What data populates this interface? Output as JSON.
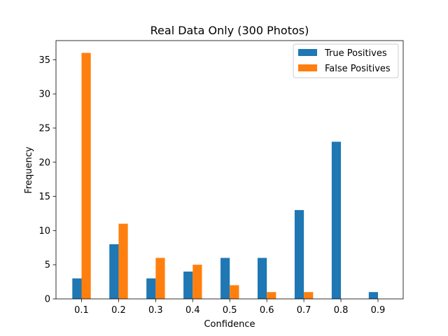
{
  "chart_data": {
    "type": "bar",
    "title": "Real Data Only (300 Photos)",
    "xlabel": "Confidence",
    "ylabel": "Frequency",
    "categories": [
      "0.1",
      "0.2",
      "0.3",
      "0.4",
      "0.5",
      "0.6",
      "0.7",
      "0.8",
      "0.9"
    ],
    "ylim": [
      0,
      37.8
    ],
    "yticks": [
      0,
      5,
      10,
      15,
      20,
      25,
      30,
      35
    ],
    "grid": false,
    "legend_position": "top-right",
    "series": [
      {
        "name": "True Positives",
        "color": "#1f77b4",
        "values": [
          3,
          8,
          3,
          4,
          6,
          6,
          13,
          23,
          1
        ]
      },
      {
        "name": "False Positives",
        "color": "#ff7f0e",
        "values": [
          36,
          11,
          6,
          5,
          2,
          1,
          1,
          0,
          0
        ]
      }
    ]
  }
}
